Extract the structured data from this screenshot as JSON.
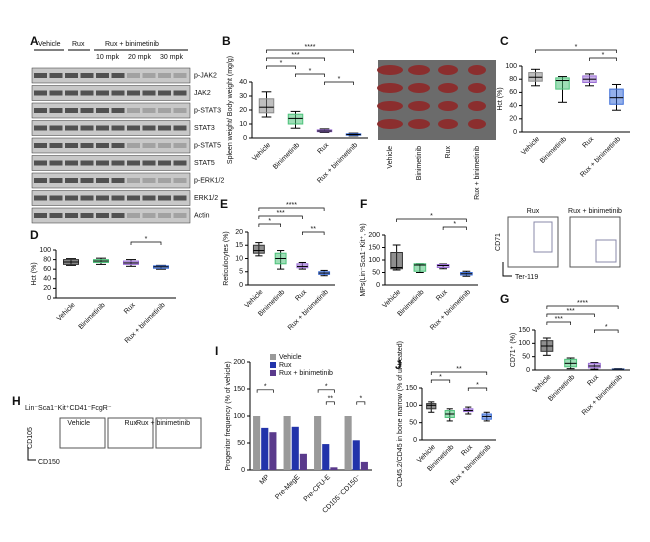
{
  "figure": {
    "A": {
      "letter": "A",
      "lanes": [
        "Vehicle",
        "Rux",
        "Rux + binimetinib"
      ],
      "doses": [
        "10 mpk",
        "20 mpk",
        "30 mpk"
      ],
      "bands": [
        "p-JAK2",
        "JAK2",
        "p-STAT3",
        "STAT3",
        "p-STAT5",
        "STAT5",
        "p-ERK1/2",
        "ERK1/2",
        "Actin"
      ]
    },
    "B_photo": {
      "labels": [
        "Vehicle",
        "Binimetinib",
        "Rux",
        "Rux + binimetinib"
      ]
    },
    "G_flow": {
      "titles": [
        "Rux",
        "Rux + binimetinib"
      ],
      "y_axis": "CD71",
      "x_axis": "Ter-119"
    },
    "H": {
      "letter": "H",
      "gate": "Lin⁻Sca1⁻Kit⁺CD41⁻FcgR⁻",
      "titles": [
        "Vehicle",
        "Rux",
        "Rux + binimetinib"
      ],
      "y_axis": "CD105",
      "x_axis": "CD150"
    }
  },
  "chart_data": [
    {
      "type": "box",
      "panel": "B",
      "ylabel": "Spleen weight/ Body weight (mg/g)",
      "categories": [
        "Vehicle",
        "Binimetinib",
        "Rux",
        "Rux + binimetinib"
      ],
      "colors": [
        "#8a8a8a",
        "#4cc27a",
        "#9b6fd6",
        "#3d6fd8"
      ],
      "min": [
        15,
        7,
        4,
        1.5
      ],
      "q1": [
        18,
        10,
        4.5,
        2
      ],
      "median": [
        22,
        14,
        5,
        2.5
      ],
      "q3": [
        28,
        17,
        5.8,
        3
      ],
      "max": [
        33,
        19,
        6.5,
        3.5
      ],
      "ylim": [
        0,
        40
      ],
      "yticks": [
        0,
        10,
        20,
        30,
        40
      ],
      "significance": [
        "*",
        "*",
        "***",
        "****",
        "*"
      ]
    },
    {
      "type": "box",
      "panel": "C",
      "ylabel": "Hct (%)",
      "categories": [
        "Vehicle",
        "Binimetinib",
        "Rux",
        "Rux + binimetinib"
      ],
      "colors": [
        "#8a8a8a",
        "#4cc27a",
        "#9b6fd6",
        "#3d6fd8"
      ],
      "min": [
        70,
        45,
        70,
        33
      ],
      "q1": [
        77,
        65,
        75,
        42
      ],
      "median": [
        83,
        78,
        80,
        52
      ],
      "q3": [
        90,
        82,
        85,
        65
      ],
      "max": [
        95,
        84,
        88,
        72
      ],
      "ylim": [
        0,
        100
      ],
      "yticks": [
        0,
        20,
        40,
        60,
        80,
        100
      ],
      "significance": [
        "*",
        "*"
      ]
    },
    {
      "type": "box",
      "panel": "D",
      "ylabel": "Hct (%)",
      "categories": [
        "Vehicle",
        "Binimetinib",
        "Rux",
        "Rux + binimetinib"
      ],
      "colors": [
        "#333333",
        "#4cc27a",
        "#9b6fd6",
        "#3d6fd8"
      ],
      "min": [
        68,
        70,
        66,
        60
      ],
      "q1": [
        70,
        74,
        70,
        62
      ],
      "median": [
        75,
        77,
        73,
        65
      ],
      "q3": [
        80,
        80,
        77,
        67
      ],
      "max": [
        82,
        83,
        80,
        68
      ],
      "ylim": [
        0,
        100
      ],
      "yticks": [
        0,
        20,
        40,
        60,
        80,
        100
      ],
      "significance": [
        "*"
      ]
    },
    {
      "type": "box",
      "panel": "E",
      "ylabel": "Reticulocytes (%)",
      "categories": [
        "Vehicle",
        "Binimetinib",
        "Rux",
        "Rux + binimetinib"
      ],
      "colors": [
        "#333333",
        "#4cc27a",
        "#9b6fd6",
        "#3d6fd8"
      ],
      "min": [
        11,
        6,
        6,
        3.5
      ],
      "q1": [
        12,
        8,
        6.5,
        4
      ],
      "median": [
        13,
        10,
        7,
        4.5
      ],
      "q3": [
        15,
        12,
        8,
        5
      ],
      "max": [
        16,
        13,
        8.5,
        5.5
      ],
      "ylim": [
        0,
        20
      ],
      "yticks": [
        0,
        5,
        10,
        15,
        20
      ],
      "significance": [
        "*",
        "***",
        "****",
        "**"
      ]
    },
    {
      "type": "box",
      "panel": "F",
      "ylabel": "MPs(Lin⁻Sca1⁻Kit⁺, %)",
      "categories": [
        "Vehicle",
        "Binimetinib",
        "Rux",
        "Rux + binimetinib"
      ],
      "colors": [
        "#333333",
        "#4cc27a",
        "#9b6fd6",
        "#3d6fd8"
      ],
      "min": [
        60,
        50,
        65,
        35
      ],
      "q1": [
        65,
        55,
        70,
        40
      ],
      "median": [
        70,
        80,
        78,
        45
      ],
      "q3": [
        130,
        85,
        82,
        50
      ],
      "max": [
        160,
        85,
        84,
        55
      ],
      "ylim": [
        0,
        200
      ],
      "yticks": [
        0,
        50,
        100,
        150,
        200
      ],
      "significance": [
        "*",
        "*"
      ]
    },
    {
      "type": "box",
      "panel": "G",
      "ylabel": "CD71⁺ (%)",
      "categories": [
        "Vehicle",
        "Binimetinib",
        "Rux",
        "Rux + binimetinib"
      ],
      "colors": [
        "#333333",
        "#4cc27a",
        "#9b6fd6",
        "#3d6fd8"
      ],
      "min": [
        55,
        5,
        3,
        1
      ],
      "q1": [
        70,
        12,
        8,
        2
      ],
      "median": [
        90,
        25,
        15,
        3
      ],
      "q3": [
        110,
        40,
        25,
        4
      ],
      "max": [
        120,
        45,
        28,
        5
      ],
      "ylim": [
        0,
        150
      ],
      "yticks": [
        0,
        50,
        100,
        150
      ],
      "significance": [
        "***",
        "***",
        "****",
        "*"
      ]
    },
    {
      "type": "bar",
      "panel": "I",
      "ylabel": "Progenitor frequency (% of vehicle)",
      "categories": [
        "MP",
        "Pre-MegE",
        "Pre-CFU-E",
        "CD105⁻CD150⁻"
      ],
      "series": [
        {
          "name": "Vehicle",
          "color": "#9a9a9a",
          "values": [
            100,
            100,
            100,
            100
          ]
        },
        {
          "name": "Rux",
          "color": "#2233aa",
          "values": [
            78,
            80,
            48,
            55
          ]
        },
        {
          "name": "Rux + binimetinib",
          "color": "#5a3a8c",
          "values": [
            70,
            30,
            5,
            15
          ]
        }
      ],
      "ylim": [
        0,
        200
      ],
      "yticks": [
        0,
        50,
        100,
        150,
        200
      ],
      "significance": [
        "*",
        "*",
        "**",
        "*"
      ]
    },
    {
      "type": "box",
      "panel": "J",
      "ylabel": "CD45.2/CD45 in bone marrow (% of untreated)",
      "categories": [
        "Vehicle",
        "Binimetinib",
        "Rux",
        "Rux + binimetinib"
      ],
      "colors": [
        "#333333",
        "#4cc27a",
        "#9b6fd6",
        "#3d6fd8"
      ],
      "min": [
        80,
        55,
        75,
        55
      ],
      "q1": [
        90,
        65,
        82,
        60
      ],
      "median": [
        100,
        75,
        85,
        68
      ],
      "q3": [
        105,
        85,
        90,
        75
      ],
      "max": [
        110,
        90,
        95,
        80
      ],
      "ylim": [
        0,
        150
      ],
      "yticks": [
        0,
        50,
        100,
        150
      ],
      "significance": [
        "*",
        "**",
        "*"
      ]
    }
  ]
}
